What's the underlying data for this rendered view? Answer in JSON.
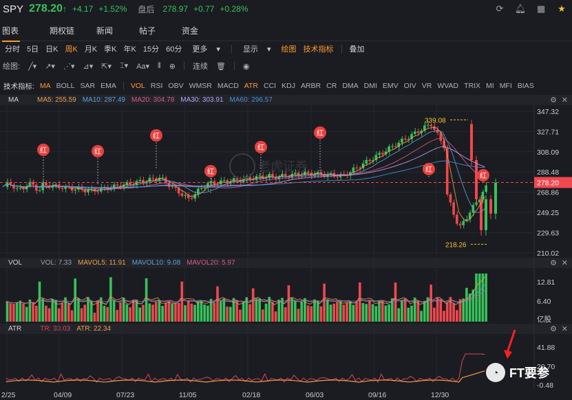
{
  "header": {
    "symbol": "SPY",
    "price": "278.20",
    "price_arrow": "↑",
    "change": "+4.17",
    "change_pct": "+1.52%",
    "after_hours_label": "盘后",
    "after_hours_price": "278.97",
    "after_hours_change": "+0.77",
    "after_hours_pct": "+0.28%",
    "icons": [
      "refresh-icon",
      "bell-icon",
      "grid-icon",
      "star-icon"
    ]
  },
  "tabs": [
    {
      "label": "图表",
      "active": true
    },
    {
      "label": "期权链",
      "active": false
    },
    {
      "label": "新闻",
      "active": false
    },
    {
      "label": "帖子",
      "active": false
    },
    {
      "label": "资金",
      "active": false
    }
  ],
  "periods": {
    "items": [
      "分时",
      "5日",
      "日K",
      "周K",
      "月K",
      "季K",
      "年K",
      "15分",
      "60分",
      "更多"
    ],
    "active": "周K",
    "display_label": "显示",
    "draw_label": "绘图",
    "indicator_label": "技术指标",
    "overlay_label": "叠加"
  },
  "drawbar": {
    "label": "绘图:",
    "connect_label": "连续"
  },
  "indicators": {
    "label": "技术指标:",
    "main": [
      "MA",
      "BOLL",
      "SAR",
      "EMA"
    ],
    "sub": [
      "VOL",
      "RSI",
      "OBV",
      "WMSR",
      "MACD",
      "ATR",
      "CCI",
      "KDJ",
      "ARBR",
      "CR",
      "DMA",
      "DMI",
      "EMV",
      "OIV",
      "VR",
      "WVAD",
      "TRIX",
      "MI",
      "MFI",
      "BIAS"
    ],
    "active": [
      "MA",
      "VOL",
      "ATR"
    ]
  },
  "ma_panel": {
    "title": "MA",
    "items": [
      {
        "label": "MA5: 255.59",
        "color": "#f0a04b"
      },
      {
        "label": "MA10: 287.49",
        "color": "#5aa0d8"
      },
      {
        "label": "MA20: 304.78",
        "color": "#d85a8a"
      },
      {
        "label": "MA30: 303.91",
        "color": "#b9a3f0"
      },
      {
        "label": "MA60: 296.57",
        "color": "#4a90d9"
      }
    ]
  },
  "vol_panel": {
    "title": "VOL",
    "items": [
      {
        "label": "VOL: 7.33",
        "color": "#9a9ea8"
      },
      {
        "label": "MAVOL5: 11.91",
        "color": "#f0a04b"
      },
      {
        "label": "MAVOL10: 9.08",
        "color": "#5aa0d8"
      },
      {
        "label": "MAVOL20: 5.97",
        "color": "#d85a8a"
      }
    ],
    "axis": [
      "12.81",
      "6.40",
      "亿股"
    ]
  },
  "atr_panel": {
    "title": "ATR",
    "items": [
      {
        "label": "TR: 33.03",
        "color": "#d8465a"
      },
      {
        "label": "ATR: 22.34",
        "color": "#f0a04b"
      }
    ],
    "axis": [
      "41.88",
      "20.70",
      "-0.48"
    ]
  },
  "price_axis": [
    "347.32",
    "327.71",
    "308.09",
    "288.48",
    "268.86",
    "249.25",
    "229.63",
    "210.02"
  ],
  "current_price_tag": "278.20",
  "high_label": "339.08",
  "low_label": "218.26",
  "red_marker_label": "红",
  "x_axis": [
    "2/25",
    "04/09",
    "07/23",
    "11/05",
    "02/18",
    "06/03",
    "09/16",
    "12/30"
  ],
  "watermark": "FT要参",
  "logo_watermark": "老虎证券",
  "colors": {
    "up": "#37c25a",
    "down": "#f0484e",
    "accent": "#ff9a2e"
  }
}
